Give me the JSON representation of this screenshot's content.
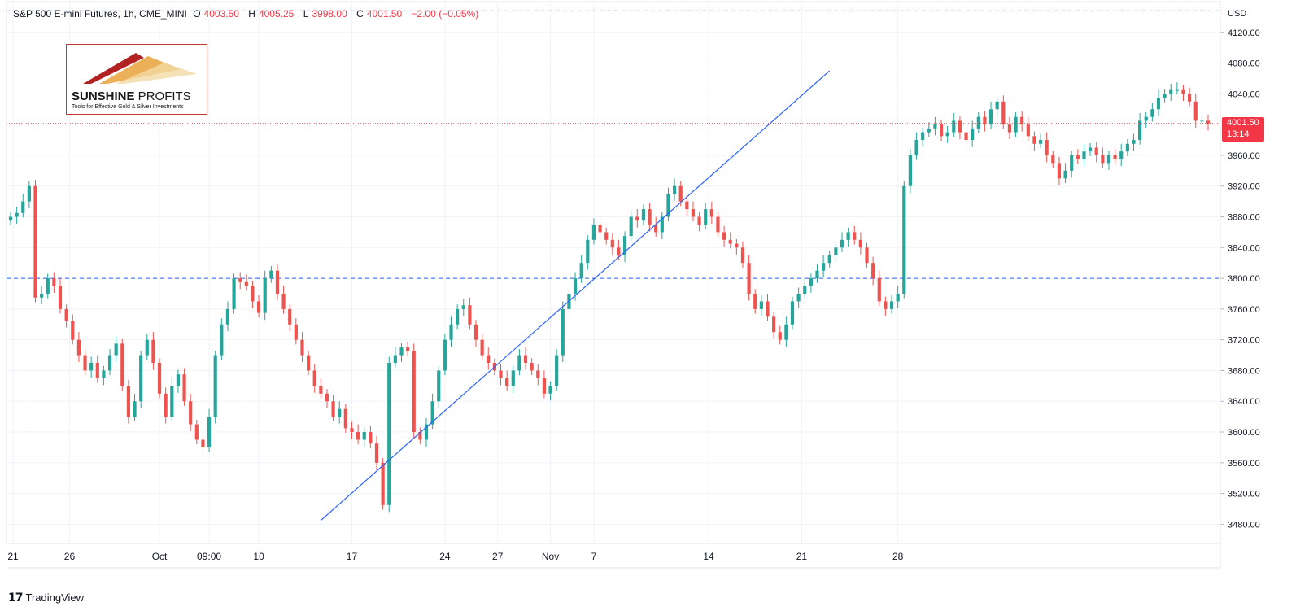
{
  "header": {
    "symbol": "S&P 500 E-mini Futures, 1h, CME_MINI",
    "o_label": "O",
    "o_value": "4003.50",
    "h_label": "H",
    "h_value": "4005.25",
    "l_label": "L",
    "l_value": "3998.00",
    "c_label": "C",
    "c_value": "4001.50",
    "change": "−2.00 (−0.05%)"
  },
  "currency": "USD",
  "price_badge": {
    "price": "4001.50",
    "countdown": "13:14"
  },
  "logo": {
    "title_bold": "SUNSHINE",
    "title_thin": " PROFITS",
    "subtitle": "Tools for Effective Gold & Silver Investments"
  },
  "footer": {
    "brand": "TradingView",
    "icon": "tradingview-logo-icon"
  },
  "colors": {
    "up": "#26a69a",
    "down": "#ef5350",
    "grid": "#f0f3fa",
    "dashed_line": "#2962ff",
    "trend_line": "#2962ff",
    "price_line": "#f23645",
    "badge": "#f23645"
  },
  "chart_data": {
    "type": "candlestick",
    "title": "S&P 500 E-mini Futures, 1h, CME_MINI",
    "ylim": [
      3455,
      4160
    ],
    "y_ticks": [
      "4120.00",
      "4080.00",
      "4040.00",
      "3960.00",
      "3920.00",
      "3880.00",
      "3840.00",
      "3800.00",
      "3760.00",
      "3720.00",
      "3680.00",
      "3640.00",
      "3600.00",
      "3560.00",
      "3520.00",
      "3480.00"
    ],
    "x_ticks": [
      "21",
      "26",
      "Oct",
      "09:00",
      "10",
      "17",
      "24",
      "27",
      "Nov",
      "7",
      "14",
      "21",
      "28"
    ],
    "x_tick_index": [
      0.4,
      9.5,
      24.0,
      32.0,
      40.0,
      55.0,
      70.0,
      78.5,
      87.0,
      94.0,
      112.5,
      127.5,
      143.0
    ],
    "close_series": [
      3880,
      3885,
      3900,
      3920,
      3775,
      3780,
      3800,
      3790,
      3760,
      3745,
      3720,
      3700,
      3680,
      3690,
      3670,
      3680,
      3700,
      3715,
      3660,
      3620,
      3640,
      3700,
      3720,
      3690,
      3650,
      3620,
      3660,
      3675,
      3640,
      3610,
      3590,
      3580,
      3620,
      3700,
      3740,
      3760,
      3800,
      3795,
      3790,
      3770,
      3755,
      3800,
      3810,
      3780,
      3760,
      3740,
      3720,
      3700,
      3680,
      3660,
      3650,
      3640,
      3620,
      3630,
      3605,
      3600,
      3590,
      3600,
      3585,
      3560,
      3505,
      3690,
      3700,
      3710,
      3705,
      3600,
      3590,
      3610,
      3640,
      3680,
      3720,
      3740,
      3760,
      3765,
      3740,
      3720,
      3700,
      3690,
      3680,
      3670,
      3660,
      3680,
      3700,
      3690,
      3680,
      3670,
      3650,
      3660,
      3700,
      3760,
      3780,
      3800,
      3820,
      3850,
      3870,
      3860,
      3850,
      3840,
      3830,
      3855,
      3880,
      3875,
      3890,
      3870,
      3860,
      3880,
      3910,
      3920,
      3900,
      3890,
      3880,
      3870,
      3890,
      3880,
      3860,
      3850,
      3845,
      3840,
      3820,
      3780,
      3760,
      3770,
      3750,
      3730,
      3720,
      3740,
      3770,
      3780,
      3790,
      3800,
      3810,
      3820,
      3830,
      3840,
      3850,
      3860,
      3850,
      3840,
      3820,
      3800,
      3770,
      3760,
      3770,
      3780,
      3920,
      3960,
      3980,
      3990,
      3995,
      4000,
      3985,
      3990,
      4005,
      3990,
      3980,
      3995,
      4010,
      4000,
      4020,
      4030,
      4000,
      3990,
      4010,
      4000,
      3985,
      3975,
      3980,
      3960,
      3950,
      3930,
      3940,
      3960,
      3955,
      3965,
      3970,
      3960,
      3950,
      3960,
      3955,
      3965,
      3975,
      3980,
      4005,
      4010,
      4020,
      4035,
      4040,
      4045,
      4045,
      4040,
      4030,
      4005,
      4005,
      4001.5
    ],
    "horizontal_lines": [
      4148,
      3800
    ],
    "price_line": 4001.5,
    "trendline": {
      "start_index": 50,
      "start_price": 3485,
      "end_index": 132,
      "end_price": 4070
    }
  }
}
